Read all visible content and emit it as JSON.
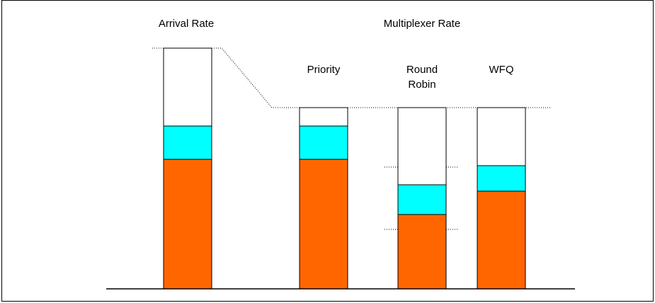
{
  "labels": {
    "arrival_rate": "Arrival Rate",
    "multiplexer_rate": "Multiplexer Rate",
    "priority": "Priority",
    "round_robin_line1": "Round",
    "round_robin_line2": "Robin",
    "wfq": "WFQ"
  },
  "colors": {
    "top_segment": "#ffffff",
    "middle_segment": "#00ffff",
    "bottom_segment": "#ff6600",
    "outline": "#000000"
  }
}
